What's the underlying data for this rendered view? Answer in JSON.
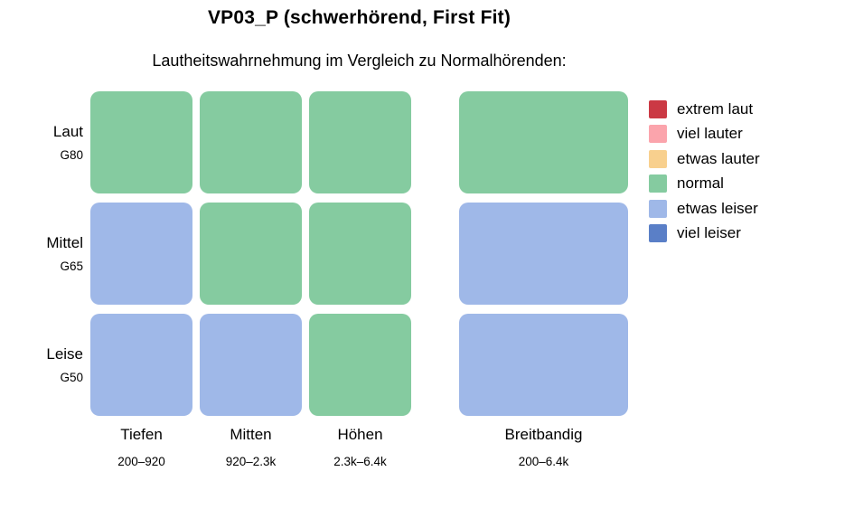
{
  "chart_data": {
    "type": "heatmap",
    "title": "VP03_P (schwerhörend, First Fit)",
    "subtitle": "Lautheitswahrnehmung im Vergleich zu Normalhörenden:",
    "rows": [
      {
        "label": "Laut",
        "sublabel": "G80"
      },
      {
        "label": "Mittel",
        "sublabel": "G65"
      },
      {
        "label": "Leise",
        "sublabel": "G50"
      }
    ],
    "columns": [
      {
        "label": "Tiefen",
        "sublabel": "200–920"
      },
      {
        "label": "Mitten",
        "sublabel": "920–2.3k"
      },
      {
        "label": "Höhen",
        "sublabel": "2.3k–6.4k"
      }
    ],
    "broadband_column": {
      "label": "Breitbandig",
      "sublabel": "200–6.4k"
    },
    "legend": [
      {
        "label": "extrem laut",
        "color": "#cb3944"
      },
      {
        "label": "viel lauter",
        "color": "#fba4ac"
      },
      {
        "label": "etwas lauter",
        "color": "#f8d08e"
      },
      {
        "label": "normal",
        "color": "#85cba0"
      },
      {
        "label": "etwas leiser",
        "color": "#9fb8e8"
      },
      {
        "label": "viel leiser",
        "color": "#5a7fc7"
      }
    ],
    "legend_position": "right",
    "grid": false,
    "cells": [
      [
        "normal",
        "normal",
        "normal"
      ],
      [
        "etwas leiser",
        "normal",
        "normal"
      ],
      [
        "etwas leiser",
        "etwas leiser",
        "normal"
      ]
    ],
    "broadband_cells": [
      "normal",
      "etwas leiser",
      "etwas leiser"
    ]
  }
}
